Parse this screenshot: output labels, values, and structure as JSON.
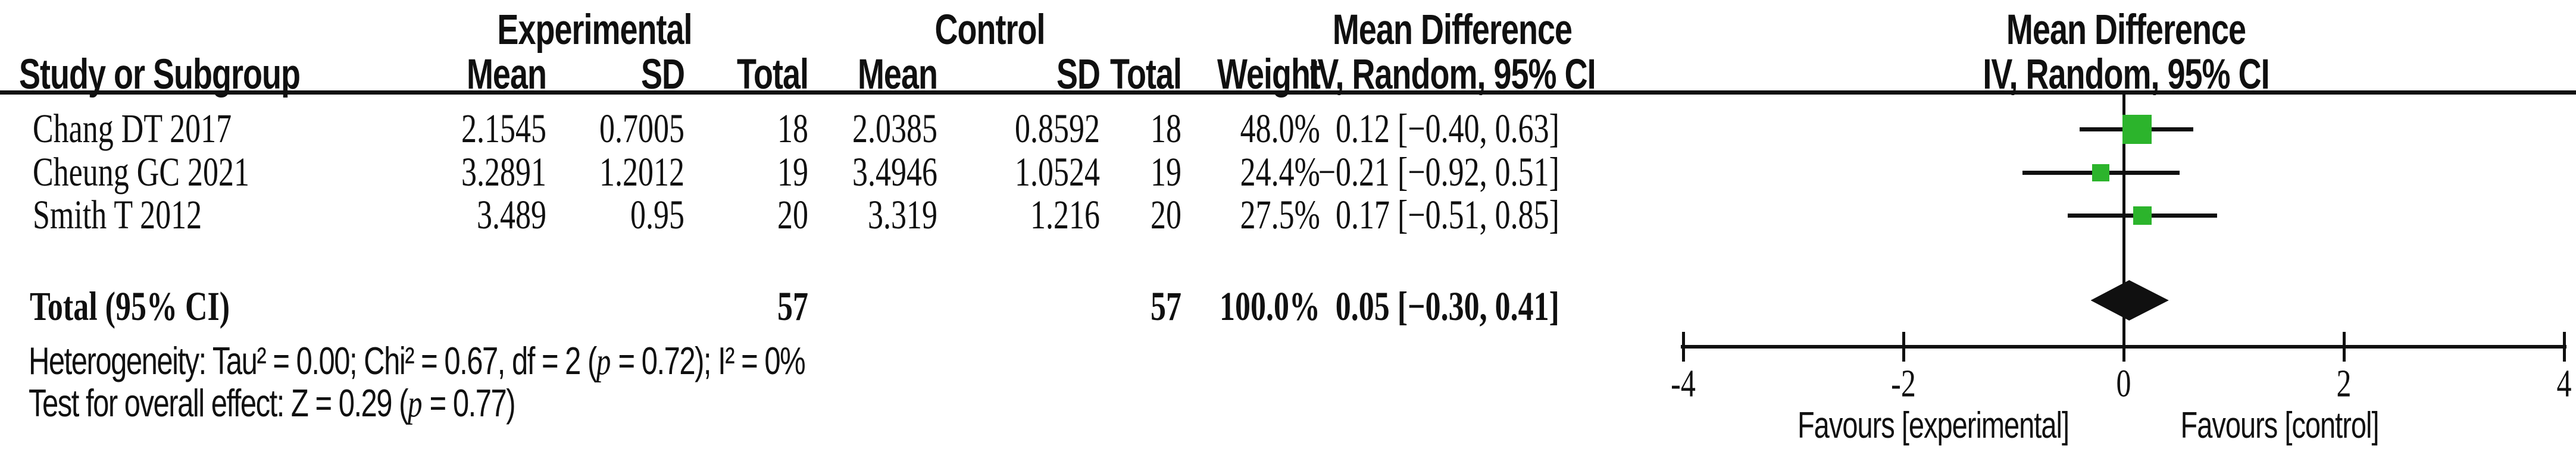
{
  "figure": {
    "colors": {
      "marker_green": "#2cb42c",
      "line_black": "#101010",
      "background": "#ffffff"
    }
  },
  "table": {
    "group_headers": {
      "experimental": "Experimental",
      "control": "Control",
      "mean_difference_table": "Mean Difference",
      "mean_difference_plot": "Mean Difference"
    },
    "col_headers": {
      "study": "Study or Subgroup",
      "exp_mean": "Mean",
      "exp_sd": "SD",
      "exp_total": "Total",
      "ctrl_mean": "Mean",
      "ctrl_sd": "SD",
      "ctrl_total": "Total",
      "weight": "Weight",
      "ci_table": "IV, Random, 95% CI",
      "ci_plot": "IV, Random, 95% CI"
    },
    "rows": [
      {
        "study": "Chang DT 2017",
        "exp_mean": "2.1545",
        "exp_sd": "0.7005",
        "exp_total": "18",
        "ctrl_mean": "2.0385",
        "ctrl_sd": "0.8592",
        "ctrl_total": "18",
        "weight": "48.0%",
        "ci": "0.12 [−0.40, 0.63]"
      },
      {
        "study": "Cheung GC 2021",
        "exp_mean": "3.2891",
        "exp_sd": "1.2012",
        "exp_total": "19",
        "ctrl_mean": "3.4946",
        "ctrl_sd": "1.0524",
        "ctrl_total": "19",
        "weight": "24.4%",
        "ci": "−0.21 [−0.92, 0.51]"
      },
      {
        "study": "Smith T 2012",
        "exp_mean": "3.489",
        "exp_sd": "0.95",
        "exp_total": "20",
        "ctrl_mean": "3.319",
        "ctrl_sd": "1.216",
        "ctrl_total": "20",
        "weight": "27.5%",
        "ci": "0.17 [−0.51, 0.85]"
      }
    ],
    "total_row": {
      "label": "Total (95% CI)",
      "exp_total": "57",
      "ctrl_total": "57",
      "weight": "100.0%",
      "ci": "0.05 [−0.30, 0.41]"
    },
    "footnotes": {
      "het_pre": "Heterogeneity: Tau² = 0.00; Chi² = 0.67, df = 2 (",
      "het_p": "p",
      "het_post": " = 0.72); I² = 0%",
      "effect_pre": "Test for overall effect: Z = 0.29 (",
      "effect_p": "p",
      "effect_post": " = 0.77)"
    }
  },
  "plot": {
    "favours_left": "Favours [experimental]",
    "favours_right": "Favours [control]"
  },
  "chart_data": {
    "type": "forest",
    "title": "Mean Difference — IV, Random, 95% CI",
    "x_axis": {
      "min": -4,
      "max": 4,
      "ticks": [
        -4,
        -2,
        0,
        2,
        4
      ],
      "tick_labels": [
        "-4",
        "-2",
        "0",
        "2",
        "4"
      ]
    },
    "studies": [
      {
        "name": "Chang DT 2017",
        "md": 0.12,
        "ci_low": -0.4,
        "ci_high": 0.63,
        "weight_pct": 48.0
      },
      {
        "name": "Cheung GC 2021",
        "md": -0.21,
        "ci_low": -0.92,
        "ci_high": 0.51,
        "weight_pct": 24.4
      },
      {
        "name": "Smith T 2012",
        "md": 0.17,
        "ci_low": -0.51,
        "ci_high": 0.85,
        "weight_pct": 27.5
      }
    ],
    "total": {
      "label": "Total (95% CI)",
      "md": 0.05,
      "ci_low": -0.3,
      "ci_high": 0.41,
      "weight_pct": 100.0
    }
  }
}
